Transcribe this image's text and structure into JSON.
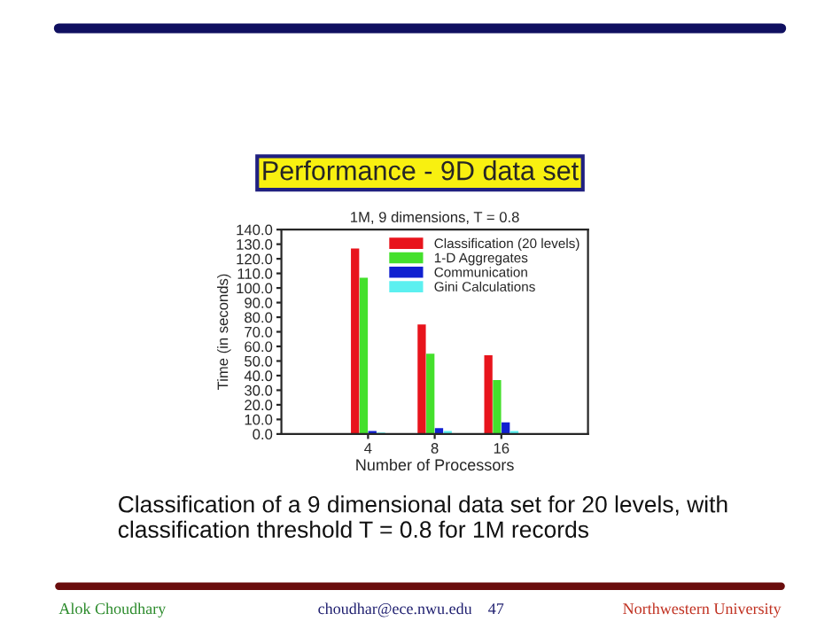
{
  "chart_data": {
    "type": "bar",
    "title": "Performance - 9D data set",
    "subtitle": "1M, 9 dimensions, T = 0.8",
    "xlabel": "Number of Processors",
    "ylabel": "Time (in seconds)",
    "categories": [
      "4",
      "8",
      "16"
    ],
    "series": [
      {
        "name": "Classification (20 levels)",
        "color": "#e8141c",
        "values": [
          127,
          75,
          54
        ]
      },
      {
        "name": "1-D Aggregates",
        "color": "#44e02c",
        "values": [
          107,
          55,
          37
        ]
      },
      {
        "name": "Communication",
        "color": "#1020d0",
        "values": [
          2,
          4,
          8
        ]
      },
      {
        "name": "Gini Calculations",
        "color": "#5cf0f0",
        "values": [
          1,
          2,
          2
        ]
      }
    ],
    "ylim": [
      0,
      140
    ],
    "yticks": [
      {
        "value": 0,
        "label": "0.0"
      },
      {
        "value": 10,
        "label": "10.0"
      },
      {
        "value": 20,
        "label": "20.0"
      },
      {
        "value": 30,
        "label": "30.0"
      },
      {
        "value": 40,
        "label": "40.0"
      },
      {
        "value": 50,
        "label": "50.0"
      },
      {
        "value": 60,
        "label": "60.0"
      },
      {
        "value": 70,
        "label": "70.0"
      },
      {
        "value": 80,
        "label": "80.0"
      },
      {
        "value": 90,
        "label": "90.0"
      },
      {
        "value": 100,
        "label": "100.0"
      },
      {
        "value": 110,
        "label": "110.0"
      },
      {
        "value": 120,
        "label": "120.0"
      },
      {
        "value": 130,
        "label": "130.0"
      },
      {
        "value": 140,
        "label": "140.0"
      }
    ],
    "grid": false,
    "legend": "top right",
    "annotations": [
      "Classification of a 9 dimensional data set for 20 levels, with classification threshold T = 0.8 for 1M records",
      "Alok Choudhary",
      "choudhar@ece.nwu.edu    47",
      "Northwestern University"
    ]
  }
}
